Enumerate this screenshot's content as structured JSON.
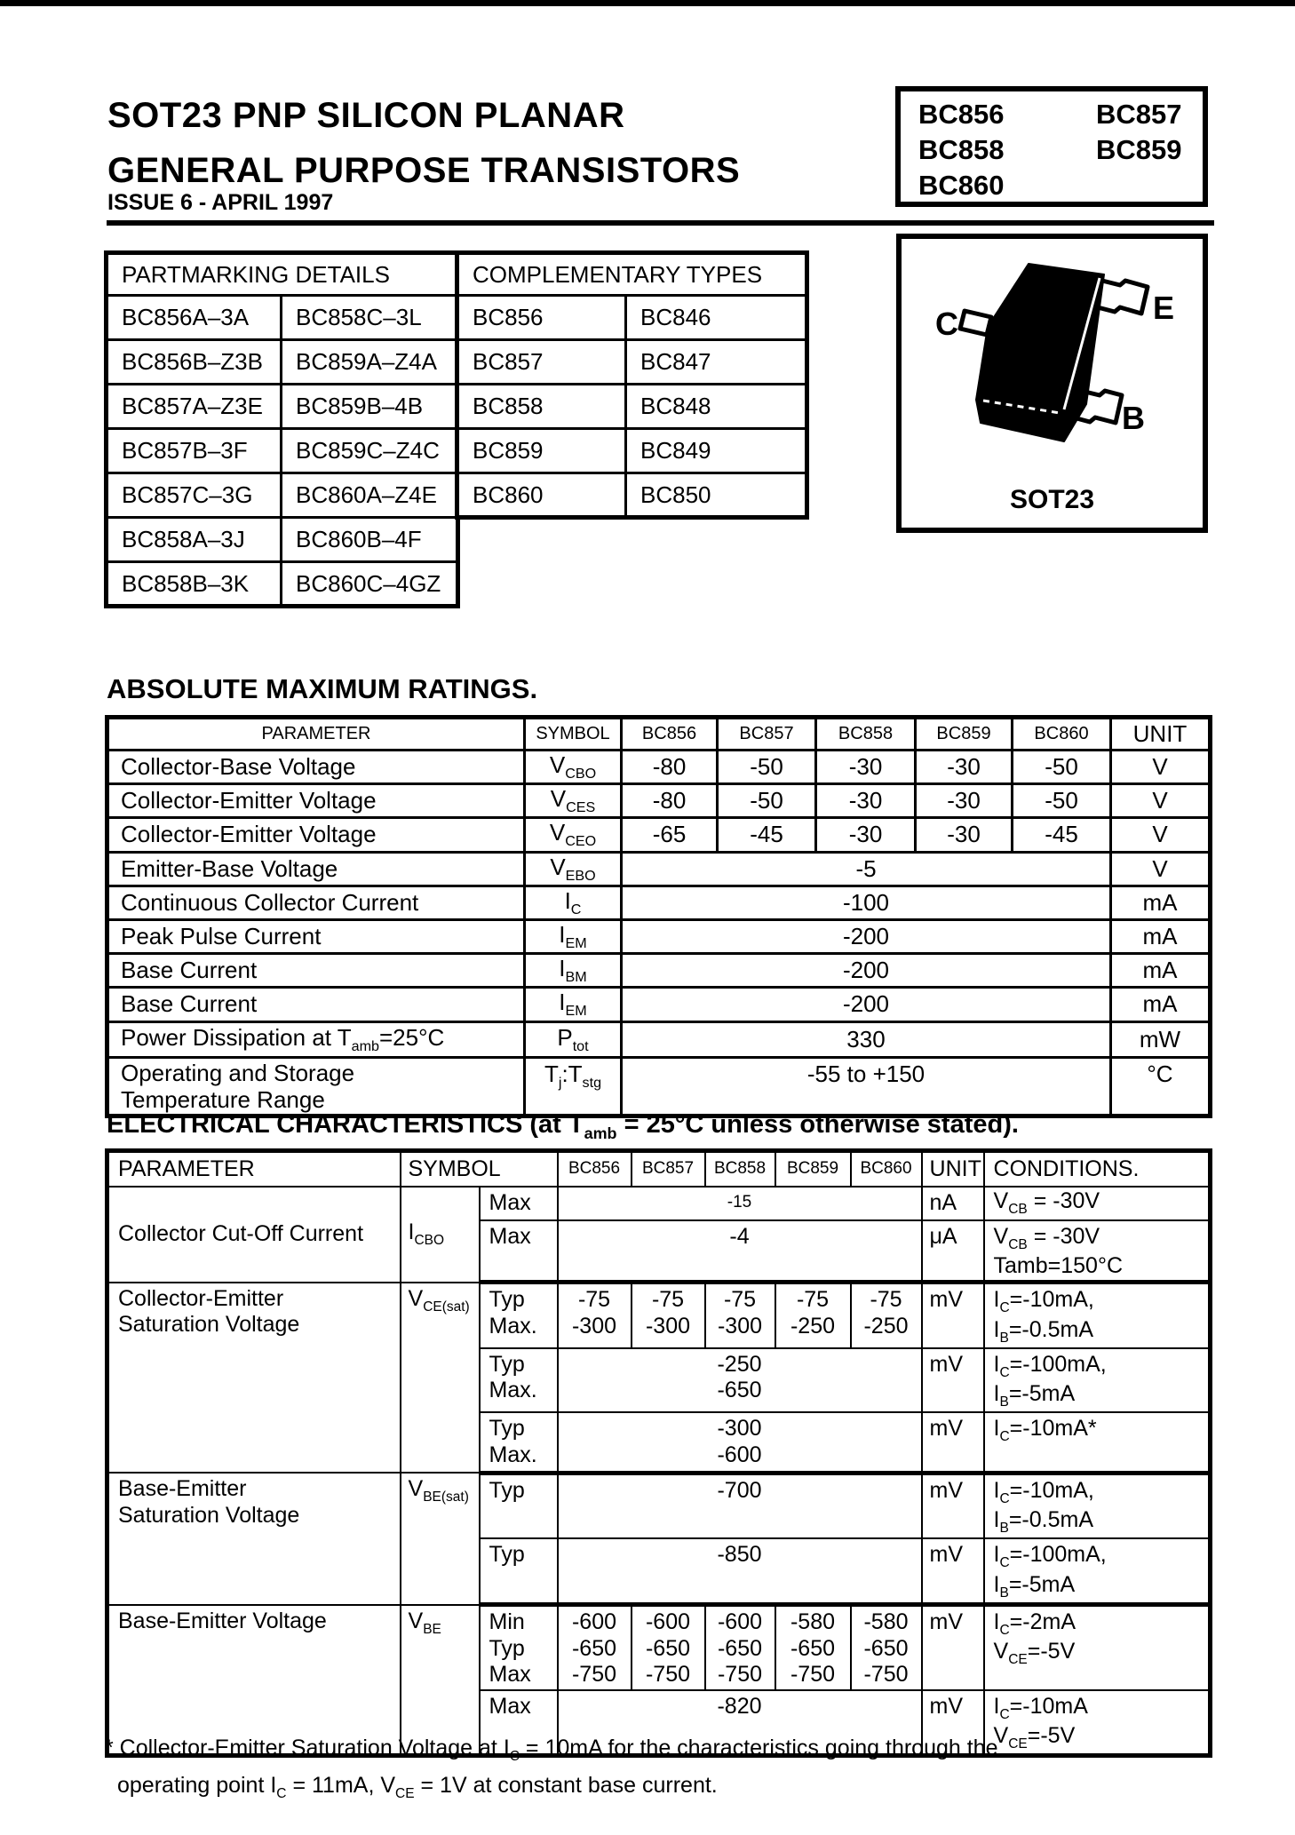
{
  "header": {
    "title_line1": "SOT23 PNP SILICON PLANAR",
    "title_line2": "GENERAL PURPOSE TRANSISTORS",
    "issue": "ISSUE 6 - APRIL 1997",
    "part_numbers": [
      "BC856",
      "BC857",
      "BC858",
      "BC859",
      "BC860"
    ]
  },
  "partmarking": {
    "title": "PARTMARKING DETAILS",
    "rows": [
      [
        "BC856A–3A",
        "BC858C–3L"
      ],
      [
        "BC856B–Z3B",
        "BC859A–Z4A"
      ],
      [
        "BC857A–Z3E",
        "BC859B–4B"
      ],
      [
        "BC857B–3F",
        "BC859C–Z4C"
      ],
      [
        "BC857C–3G",
        "BC860A–Z4E"
      ],
      [
        "BC858A–3J",
        "BC860B–4F"
      ],
      [
        "BC858B–3K",
        "BC860C–4GZ"
      ]
    ]
  },
  "complementary": {
    "title": "COMPLEMENTARY TYPES",
    "rows": [
      [
        "BC856",
        "BC846"
      ],
      [
        "BC857",
        "BC847"
      ],
      [
        "BC858",
        "BC848"
      ],
      [
        "BC859",
        "BC849"
      ],
      [
        "BC860",
        "BC850"
      ]
    ]
  },
  "package": {
    "caption": "SOT23",
    "pin_collector": "C",
    "pin_emitter": "E",
    "pin_base": "B"
  },
  "abs_max": {
    "heading": "ABSOLUTE MAXIMUM RATINGS.",
    "col_headers": {
      "parameter": "PARAMETER",
      "symbol": "SYMBOL",
      "types": [
        "BC856",
        "BC857",
        "BC858",
        "BC859",
        "BC860"
      ],
      "unit": "UNIT"
    },
    "rows": [
      {
        "param": "Collector-Base Voltage",
        "symbol": "V{CBO}",
        "values": [
          "-80",
          "-50",
          "-30",
          "-30",
          "-50"
        ],
        "unit": "V"
      },
      {
        "param": "Collector-Emitter Voltage",
        "symbol": "V{CES}",
        "values": [
          "-80",
          "-50",
          "-30",
          "-30",
          "-50"
        ],
        "unit": "V"
      },
      {
        "param": "Collector-Emitter Voltage",
        "symbol": "V{CEO}",
        "values": [
          "-65",
          "-45",
          "-30",
          "-30",
          "-45"
        ],
        "unit": "V"
      },
      {
        "param": "Emitter-Base Voltage",
        "symbol": "V{EBO}",
        "span": "-5",
        "unit": "V"
      },
      {
        "param": "Continuous Collector Current",
        "symbol": "I{C}",
        "span": "-100",
        "unit": "mA"
      },
      {
        "param": "Peak Pulse Current",
        "symbol": "I{EM}",
        "span": "-200",
        "unit": "mA"
      },
      {
        "param": "Base Current",
        "symbol": "I{BM}",
        "span": "-200",
        "unit": "mA"
      },
      {
        "param": "Base Current",
        "symbol": "I{EM}",
        "span": "-200",
        "unit": "mA"
      },
      {
        "param": "Power Dissipation at T{amb}=25°C",
        "symbol": "P{tot}",
        "span": "330",
        "unit": "mW"
      },
      {
        "param": "Operating and Storage\nTemperature Range",
        "symbol": "T{j}:T{stg}",
        "span": "-55 to +150",
        "unit": "°C"
      }
    ]
  },
  "elec": {
    "heading": "ELECTRICAL CHARACTERISTICS (at T{amb} = 25°C unless otherwise stated).",
    "col_headers": {
      "parameter": "PARAMETER",
      "symbol": "SYMBOL",
      "types": [
        "BC856",
        "BC857",
        "BC858",
        "BC859",
        "BC860"
      ],
      "unit": "UNIT",
      "conditions": "CONDITIONS."
    },
    "rows": [
      {
        "param": "Collector Cut-Off Current",
        "symbol": "I{CBO}",
        "sub": "Max",
        "span": "-15",
        "unit": "nA",
        "cond": "V{CB} = -30V"
      },
      {
        "sub": "Max",
        "span": "-4",
        "unit": "μA",
        "cond": "V{CB} = -30V\nTamb=150°C"
      },
      {
        "param": "Collector-Emitter\nSaturation Voltage",
        "symbol": "V{CE(sat)}",
        "sub": "Typ\nMax.",
        "values": [
          "-75\n-300",
          "-75\n-300",
          "-75\n-300",
          "-75\n-250",
          "-75\n-250"
        ],
        "unit": "mV",
        "cond": "I{C}=-10mA,\nI{B}=-0.5mA"
      },
      {
        "sub": "Typ\nMax.",
        "span": "-250\n-650",
        "unit": "mV",
        "cond": "I{C}=-100mA,\nI{B}=-5mA"
      },
      {
        "sub": "Typ\nMax.",
        "span": "-300\n-600",
        "unit": "mV",
        "cond": "I{C}=-10mA*"
      },
      {
        "param": "Base-Emitter\nSaturation Voltage",
        "symbol": "V{BE(sat)}",
        "sub": "Typ",
        "span": "-700",
        "unit": "mV",
        "cond": "I{C}=-10mA,\nI{B}=-0.5mA"
      },
      {
        "sub": "Typ",
        "span": "-850",
        "unit": "mV",
        "cond": "I{C}=-100mA,\nI{B}=-5mA"
      },
      {
        "param": "Base-Emitter Voltage",
        "symbol": "V{BE}",
        "sub": "Min\nTyp\nMax",
        "values": [
          "-600\n-650\n-750",
          "-600\n-650\n-750",
          "-600\n-650\n-750",
          "-580\n-650\n-750",
          "-580\n-650\n-750"
        ],
        "unit": "mV",
        "cond": "I{C}=-2mA\nV{CE}=-5V"
      },
      {
        "sub": "Max",
        "span": "-820",
        "unit": "mV",
        "cond": "I{C}=-10mA\nV{CE}=-5V"
      }
    ]
  },
  "footnote": {
    "line1": "* Collector-Emitter Saturation Voltage at I{C} = 10mA for the characteristics going through the",
    "line2": "operating point I{C} = 11mA, V{CE} = 1V at constant base current."
  }
}
